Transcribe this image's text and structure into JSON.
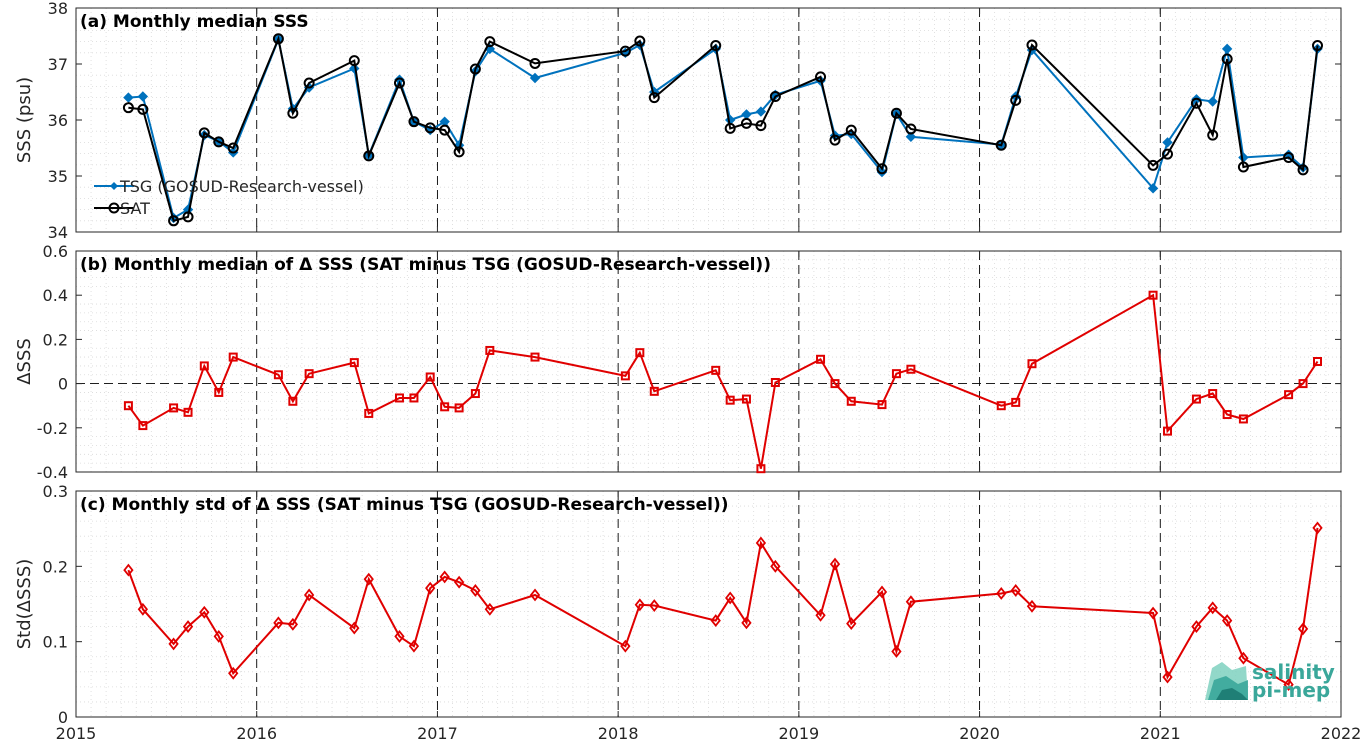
{
  "colors": {
    "tsg": "#0072BD",
    "sat": "#000000",
    "delta": "#E00000"
  },
  "logo": {
    "line1": "salinity",
    "line2": "pi-mep"
  },
  "chart_data": [
    {
      "type": "line",
      "title": "(a) Monthly median SSS",
      "ylabel": "SSS (psu)",
      "xlim": [
        2015,
        2022
      ],
      "ylim": [
        34,
        38
      ],
      "xticks": [
        "2015",
        "2016",
        "2017",
        "2018",
        "2019",
        "2020",
        "2021",
        "2022"
      ],
      "yticks": [
        "34",
        "35",
        "36",
        "37",
        "38"
      ],
      "legend": "middle-left",
      "series": [
        {
          "name": "TSG (GOSUD-Research-vessel)",
          "marker": "diamond-filled",
          "x": [
            2015.29,
            2015.37,
            2015.54,
            2015.62,
            2015.71,
            2015.79,
            2015.87,
            2016.12,
            2016.2,
            2016.29,
            2016.54,
            2016.62,
            2016.79,
            2016.87,
            2016.96,
            2017.04,
            2017.12,
            2017.21,
            2017.29,
            2017.54,
            2018.04,
            2018.12,
            2018.2,
            2018.54,
            2018.62,
            2018.71,
            2018.79,
            2018.87,
            2019.12,
            2019.2,
            2019.29,
            2019.46,
            2019.54,
            2019.62,
            2020.12,
            2020.2,
            2020.29,
            2020.96,
            2021.04,
            2021.2,
            2021.29,
            2021.37,
            2021.46,
            2021.71,
            2021.79,
            2021.87
          ],
          "y": [
            36.4,
            36.42,
            34.25,
            34.4,
            35.73,
            35.62,
            35.42,
            37.44,
            36.2,
            36.58,
            36.92,
            35.37,
            36.72,
            35.97,
            35.82,
            35.97,
            35.55,
            36.87,
            37.27,
            36.75,
            37.2,
            37.34,
            36.5,
            37.27,
            36.0,
            36.1,
            36.15,
            36.45,
            36.7,
            35.72,
            35.75,
            35.07,
            36.11,
            35.7,
            35.56,
            36.42,
            37.25,
            34.78,
            35.6,
            36.37,
            36.33,
            37.27,
            35.33,
            35.38,
            35.15,
            37.27
          ]
        },
        {
          "name": "SAT",
          "marker": "circle-open",
          "x": [
            2015.29,
            2015.37,
            2015.54,
            2015.62,
            2015.71,
            2015.79,
            2015.87,
            2016.12,
            2016.2,
            2016.29,
            2016.54,
            2016.62,
            2016.79,
            2016.87,
            2016.96,
            2017.04,
            2017.12,
            2017.21,
            2017.29,
            2017.54,
            2018.04,
            2018.12,
            2018.2,
            2018.54,
            2018.62,
            2018.71,
            2018.79,
            2018.87,
            2019.12,
            2019.2,
            2019.29,
            2019.46,
            2019.54,
            2019.62,
            2020.12,
            2020.2,
            2020.29,
            2020.96,
            2021.04,
            2021.2,
            2021.29,
            2021.37,
            2021.46,
            2021.71,
            2021.79,
            2021.87
          ],
          "y": [
            36.22,
            36.19,
            34.2,
            34.27,
            35.77,
            35.61,
            35.5,
            37.45,
            36.12,
            36.66,
            37.06,
            35.36,
            36.66,
            35.97,
            35.86,
            35.82,
            35.43,
            36.91,
            37.4,
            37.01,
            37.23,
            37.41,
            36.4,
            37.33,
            35.85,
            35.94,
            35.9,
            36.42,
            36.77,
            35.64,
            35.82,
            35.13,
            36.12,
            35.84,
            35.55,
            36.35,
            37.34,
            35.19,
            35.39,
            36.3,
            35.73,
            37.09,
            35.16,
            35.33,
            35.11,
            37.33
          ]
        }
      ]
    },
    {
      "type": "line",
      "title": "(b) Monthly median of Δ SSS (SAT minus TSG (GOSUD-Research-vessel))",
      "ylabel": "ΔSSS",
      "xlim": [
        2015,
        2022
      ],
      "ylim": [
        -0.4,
        0.6
      ],
      "xticks": [
        "2015",
        "2016",
        "2017",
        "2018",
        "2019",
        "2020",
        "2021",
        "2022"
      ],
      "yticks": [
        "-0.4",
        "-0.2",
        "0",
        "0.2",
        "0.4",
        "0.6"
      ],
      "series": [
        {
          "marker": "square-open",
          "x": [
            2015.29,
            2015.37,
            2015.54,
            2015.62,
            2015.71,
            2015.79,
            2015.87,
            2016.12,
            2016.2,
            2016.29,
            2016.54,
            2016.62,
            2016.79,
            2016.87,
            2016.96,
            2017.04,
            2017.12,
            2017.21,
            2017.29,
            2017.54,
            2018.04,
            2018.12,
            2018.2,
            2018.54,
            2018.62,
            2018.71,
            2018.79,
            2018.87,
            2019.12,
            2019.2,
            2019.29,
            2019.46,
            2019.54,
            2019.62,
            2020.12,
            2020.2,
            2020.29,
            2020.96,
            2021.04,
            2021.2,
            2021.29,
            2021.37,
            2021.46,
            2021.71,
            2021.79,
            2021.87
          ],
          "y": [
            -0.1,
            -0.19,
            -0.11,
            -0.13,
            0.08,
            -0.04,
            0.12,
            0.04,
            -0.08,
            0.045,
            0.095,
            -0.135,
            -0.065,
            -0.065,
            0.03,
            -0.105,
            -0.11,
            -0.045,
            0.15,
            0.12,
            0.035,
            0.14,
            -0.035,
            0.06,
            -0.075,
            -0.07,
            -0.385,
            0.005,
            0.11,
            0.0,
            -0.08,
            -0.095,
            0.045,
            0.065,
            -0.1,
            -0.085,
            0.09,
            0.4,
            -0.215,
            -0.07,
            -0.045,
            -0.14,
            -0.16,
            -0.05,
            0.0,
            0.1
          ]
        }
      ]
    },
    {
      "type": "line",
      "title": "(c) Monthly std of Δ SSS (SAT minus TSG (GOSUD-Research-vessel))",
      "ylabel": "Std(ΔSSS)",
      "xlim": [
        2015,
        2022
      ],
      "ylim": [
        0,
        0.3
      ],
      "xticks": [
        "2015",
        "2016",
        "2017",
        "2018",
        "2019",
        "2020",
        "2021",
        "2022"
      ],
      "yticks": [
        "0",
        "0.1",
        "0.2",
        "0.3"
      ],
      "series": [
        {
          "marker": "diamond-open",
          "x": [
            2015.29,
            2015.37,
            2015.54,
            2015.62,
            2015.71,
            2015.79,
            2015.87,
            2016.12,
            2016.2,
            2016.29,
            2016.54,
            2016.62,
            2016.79,
            2016.87,
            2016.96,
            2017.04,
            2017.12,
            2017.21,
            2017.29,
            2017.54,
            2018.04,
            2018.12,
            2018.2,
            2018.54,
            2018.62,
            2018.71,
            2018.79,
            2018.87,
            2019.12,
            2019.2,
            2019.29,
            2019.46,
            2019.54,
            2019.62,
            2020.12,
            2020.2,
            2020.29,
            2020.96,
            2021.04,
            2021.2,
            2021.29,
            2021.37,
            2021.46,
            2021.71,
            2021.79,
            2021.87
          ],
          "y": [
            0.195,
            0.143,
            0.097,
            0.12,
            0.139,
            0.107,
            0.058,
            0.125,
            0.123,
            0.162,
            0.118,
            0.183,
            0.107,
            0.094,
            0.171,
            0.186,
            0.179,
            0.168,
            0.143,
            0.162,
            0.094,
            0.149,
            0.148,
            0.128,
            0.158,
            0.125,
            0.231,
            0.2,
            0.135,
            0.203,
            0.124,
            0.166,
            0.087,
            0.153,
            0.164,
            0.168,
            0.147,
            0.138,
            0.053,
            0.12,
            0.145,
            0.128,
            0.078,
            0.043,
            0.117,
            0.251
          ]
        }
      ]
    }
  ]
}
